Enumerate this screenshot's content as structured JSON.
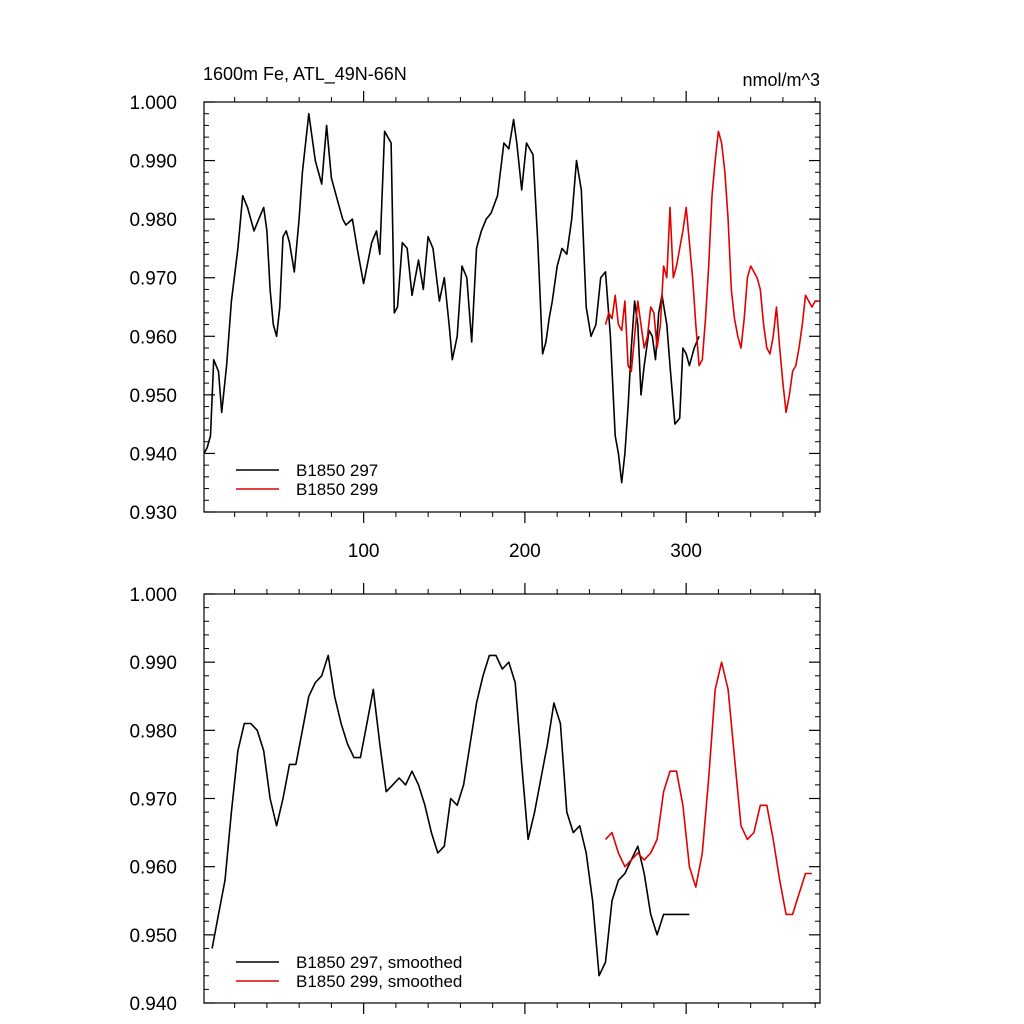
{
  "chart_data": [
    {
      "type": "line",
      "title": "1600m Fe, ATL_49N-66N",
      "units": "nmol/m^3",
      "xlim": [
        1,
        383
      ],
      "ylim": [
        0.93,
        1.0
      ],
      "x_ticks": [
        100,
        200,
        300
      ],
      "x_tick_labels": [
        "100",
        "200",
        "300"
      ],
      "y_ticks": [
        0.93,
        0.94,
        0.95,
        0.96,
        0.97,
        0.98,
        0.99,
        1.0
      ],
      "y_tick_labels": [
        "0.930",
        "0.940",
        "0.950",
        "0.960",
        "0.970",
        "0.980",
        "0.990",
        "1.000"
      ],
      "grid": false,
      "legend_position": "bottom-left",
      "series": [
        {
          "name": "B1850 297",
          "color": "#000000",
          "x": [
            1,
            3,
            5,
            7,
            10,
            12,
            15,
            18,
            22,
            25,
            28,
            32,
            35,
            38,
            40,
            42,
            44,
            46,
            48,
            50,
            52,
            54,
            57,
            60,
            62,
            66,
            70,
            74,
            77,
            80,
            84,
            87,
            89,
            93,
            96,
            100,
            105,
            108,
            110,
            113,
            117,
            119,
            121,
            124,
            127,
            130,
            134,
            137,
            140,
            143,
            147,
            150,
            153,
            155,
            158,
            161,
            164,
            167,
            170,
            173,
            176,
            179,
            183,
            187,
            190,
            193,
            195,
            198,
            201,
            205,
            208,
            211,
            213,
            215,
            217,
            220,
            223,
            226,
            229,
            232,
            235,
            238,
            241,
            244,
            247,
            250,
            253,
            256,
            258,
            260,
            262,
            264,
            266,
            268,
            270,
            272,
            274,
            277,
            279,
            281,
            283,
            285,
            288,
            290,
            293,
            296,
            298,
            300,
            302,
            305,
            308
          ],
          "y": [
            0.94,
            0.941,
            0.943,
            0.956,
            0.954,
            0.947,
            0.955,
            0.966,
            0.975,
            0.984,
            0.982,
            0.978,
            0.98,
            0.982,
            0.978,
            0.968,
            0.962,
            0.96,
            0.965,
            0.977,
            0.978,
            0.976,
            0.971,
            0.98,
            0.988,
            0.998,
            0.99,
            0.986,
            0.996,
            0.987,
            0.983,
            0.98,
            0.979,
            0.98,
            0.975,
            0.969,
            0.976,
            0.978,
            0.974,
            0.995,
            0.993,
            0.964,
            0.965,
            0.976,
            0.975,
            0.967,
            0.973,
            0.968,
            0.977,
            0.975,
            0.966,
            0.97,
            0.962,
            0.956,
            0.96,
            0.972,
            0.97,
            0.959,
            0.975,
            0.978,
            0.98,
            0.981,
            0.984,
            0.993,
            0.992,
            0.997,
            0.993,
            0.985,
            0.993,
            0.991,
            0.976,
            0.957,
            0.959,
            0.963,
            0.966,
            0.972,
            0.975,
            0.974,
            0.98,
            0.99,
            0.985,
            0.965,
            0.96,
            0.962,
            0.97,
            0.971,
            0.96,
            0.943,
            0.94,
            0.935,
            0.94,
            0.948,
            0.958,
            0.966,
            0.962,
            0.95,
            0.955,
            0.961,
            0.96,
            0.956,
            0.964,
            0.967,
            0.962,
            0.955,
            0.945,
            0.946,
            0.958,
            0.957,
            0.955,
            0.958,
            0.96
          ]
        },
        {
          "name": "B1850 299",
          "color": "#e00000",
          "x": [
            250,
            252,
            254,
            256,
            258,
            260,
            262,
            264,
            266,
            268,
            270,
            272,
            274,
            276,
            278,
            280,
            282,
            284,
            286,
            288,
            290,
            292,
            294,
            296,
            298,
            300,
            302,
            304,
            306,
            308,
            310,
            312,
            314,
            316,
            318,
            320,
            322,
            324,
            326,
            328,
            330,
            332,
            334,
            336,
            338,
            340,
            342,
            344,
            346,
            348,
            350,
            352,
            354,
            356,
            358,
            360,
            362,
            364,
            366,
            368,
            370,
            372,
            374,
            376,
            378,
            380,
            382
          ],
          "y": [
            0.962,
            0.964,
            0.963,
            0.967,
            0.962,
            0.961,
            0.966,
            0.955,
            0.954,
            0.96,
            0.966,
            0.962,
            0.958,
            0.96,
            0.965,
            0.964,
            0.958,
            0.962,
            0.972,
            0.97,
            0.982,
            0.97,
            0.972,
            0.975,
            0.978,
            0.982,
            0.976,
            0.97,
            0.962,
            0.955,
            0.956,
            0.963,
            0.972,
            0.984,
            0.99,
            0.995,
            0.993,
            0.988,
            0.98,
            0.968,
            0.963,
            0.96,
            0.958,
            0.963,
            0.97,
            0.972,
            0.971,
            0.97,
            0.968,
            0.962,
            0.958,
            0.957,
            0.96,
            0.965,
            0.958,
            0.952,
            0.947,
            0.95,
            0.954,
            0.955,
            0.958,
            0.962,
            0.967,
            0.966,
            0.965,
            0.966,
            0.966
          ]
        }
      ]
    },
    {
      "type": "line",
      "title": "",
      "xlim": [
        1,
        383
      ],
      "ylim": [
        0.94,
        1.0
      ],
      "x_ticks": [
        100,
        200,
        300
      ],
      "x_tick_labels": [
        "",
        "",
        ""
      ],
      "y_ticks": [
        0.94,
        0.95,
        0.96,
        0.97,
        0.98,
        0.99,
        1.0
      ],
      "y_tick_labels": [
        "0.940",
        "0.950",
        "0.960",
        "0.970",
        "0.980",
        "0.990",
        "1.000"
      ],
      "grid": false,
      "legend_position": "bottom-left",
      "series": [
        {
          "name": "B1850 297, smoothed",
          "color": "#000000",
          "x": [
            6,
            10,
            14,
            18,
            22,
            26,
            30,
            34,
            38,
            42,
            46,
            50,
            54,
            58,
            62,
            66,
            70,
            74,
            78,
            82,
            86,
            90,
            94,
            98,
            102,
            106,
            110,
            114,
            118,
            122,
            126,
            130,
            134,
            138,
            142,
            146,
            150,
            154,
            158,
            162,
            166,
            170,
            174,
            178,
            182,
            186,
            190,
            194,
            198,
            202,
            206,
            210,
            214,
            218,
            222,
            226,
            230,
            234,
            238,
            242,
            246,
            250,
            254,
            258,
            262,
            266,
            270,
            274,
            278,
            282,
            286,
            290,
            294,
            298,
            302
          ],
          "y": [
            0.948,
            0.953,
            0.958,
            0.968,
            0.977,
            0.981,
            0.981,
            0.98,
            0.977,
            0.97,
            0.966,
            0.97,
            0.975,
            0.975,
            0.98,
            0.985,
            0.987,
            0.988,
            0.991,
            0.985,
            0.981,
            0.978,
            0.976,
            0.976,
            0.981,
            0.986,
            0.978,
            0.971,
            0.972,
            0.973,
            0.972,
            0.974,
            0.972,
            0.969,
            0.965,
            0.962,
            0.963,
            0.97,
            0.969,
            0.972,
            0.978,
            0.984,
            0.988,
            0.991,
            0.991,
            0.989,
            0.99,
            0.987,
            0.975,
            0.964,
            0.968,
            0.973,
            0.978,
            0.984,
            0.981,
            0.968,
            0.965,
            0.966,
            0.962,
            0.955,
            0.944,
            0.946,
            0.955,
            0.958,
            0.959,
            0.961,
            0.963,
            0.959,
            0.953,
            0.95,
            0.953,
            0.953,
            0.953,
            0.953,
            0.953
          ]
        },
        {
          "name": "B1850 299, smoothed",
          "color": "#e00000",
          "x": [
            250,
            254,
            258,
            262,
            266,
            270,
            274,
            278,
            282,
            286,
            290,
            294,
            298,
            302,
            306,
            310,
            314,
            318,
            322,
            326,
            330,
            334,
            338,
            342,
            346,
            350,
            354,
            358,
            362,
            366,
            370,
            374,
            378
          ],
          "y": [
            0.964,
            0.965,
            0.962,
            0.96,
            0.961,
            0.962,
            0.961,
            0.962,
            0.964,
            0.971,
            0.974,
            0.974,
            0.969,
            0.96,
            0.957,
            0.962,
            0.973,
            0.986,
            0.99,
            0.986,
            0.976,
            0.966,
            0.964,
            0.965,
            0.969,
            0.969,
            0.964,
            0.958,
            0.953,
            0.953,
            0.956,
            0.959,
            0.959
          ]
        }
      ]
    }
  ]
}
